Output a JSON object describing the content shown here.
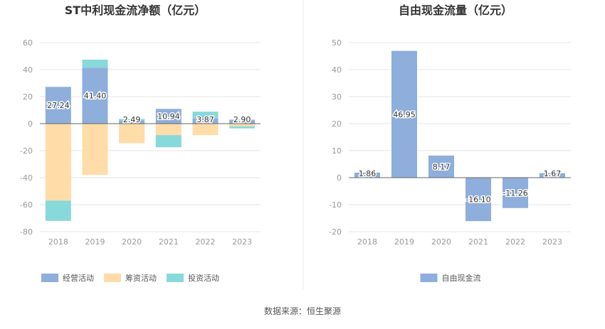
{
  "source_text": "数据来源：恒生聚源",
  "chart_data": [
    {
      "type": "bar",
      "stacked": true,
      "title": "ST中利现金流净额（亿元）",
      "categories": [
        "2018",
        "2019",
        "2020",
        "2021",
        "2022",
        "2023"
      ],
      "ylim": [
        -80,
        60
      ],
      "yticks": [
        -80,
        -60,
        -40,
        -20,
        0,
        20,
        40,
        60
      ],
      "grid": true,
      "legend_position": "bottom",
      "series": [
        {
          "name": "经营活动",
          "color": "#8eaedb",
          "values": [
            27.24,
            41.4,
            2.49,
            10.94,
            3.87,
            2.9
          ]
        },
        {
          "name": "筹资活动",
          "color": "#ffdca8",
          "values": [
            -57.0,
            -38.0,
            -14.5,
            -8.5,
            -8.5,
            -2.0
          ]
        },
        {
          "name": "投资活动",
          "color": "#88d9d9",
          "values": [
            -15.0,
            6.0,
            1.0,
            -9.0,
            5.0,
            -1.5
          ]
        }
      ],
      "data_labels": [
        "27.24",
        "41.40",
        "2.49",
        "10.94",
        "3.87",
        "2.90"
      ]
    },
    {
      "type": "bar",
      "title": "自由现金流量（亿元）",
      "categories": [
        "2018",
        "2019",
        "2020",
        "2021",
        "2022",
        "2023"
      ],
      "ylim": [
        -20,
        50
      ],
      "yticks": [
        -20,
        -10,
        0,
        10,
        20,
        30,
        40,
        50
      ],
      "grid": true,
      "legend_position": "bottom",
      "series": [
        {
          "name": "自由现金流",
          "color": "#8eaedb",
          "values": [
            1.86,
            46.95,
            8.17,
            -16.1,
            -11.26,
            1.67
          ]
        }
      ],
      "data_labels": [
        "1.86",
        "46.95",
        "8.17",
        "-16.10",
        "-11.26",
        "1.67"
      ]
    }
  ]
}
